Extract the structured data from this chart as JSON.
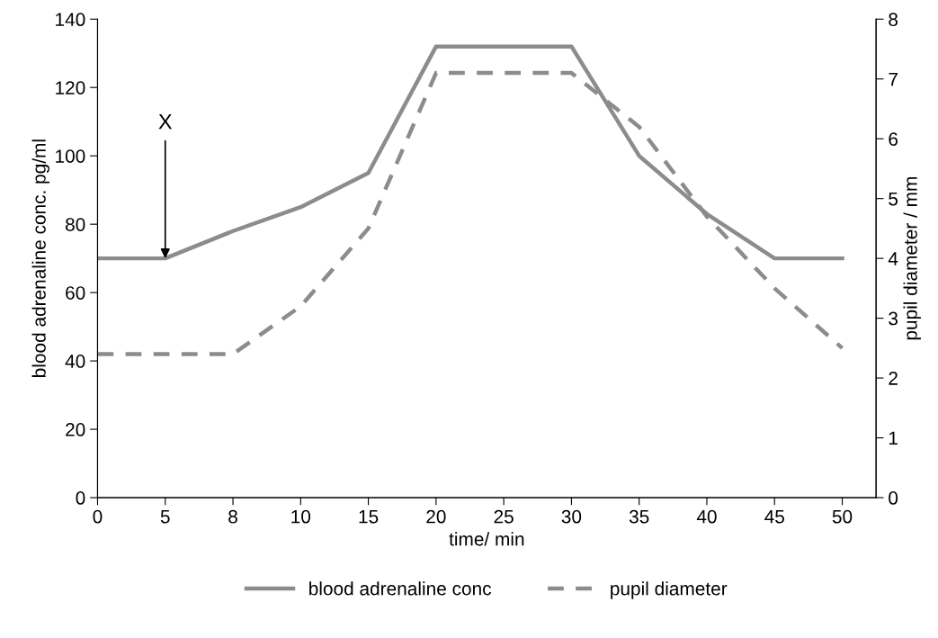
{
  "chart_data": {
    "type": "line",
    "xlabel": "time/ min",
    "ylabel": "blood adrenaline conc. pg/ml",
    "y2label": "pupil diameter / mm",
    "categories": [
      "0",
      "5",
      "8",
      "10",
      "15",
      "20",
      "25",
      "30",
      "35",
      "40",
      "45",
      "50"
    ],
    "series": [
      {
        "name": "blood adrenaline conc",
        "color": "#8c8c8c",
        "line_style": "solid",
        "values": [
          70,
          70,
          78,
          85,
          95,
          132,
          132,
          132,
          100,
          83,
          70,
          70
        ]
      },
      {
        "name": "pupil diameter",
        "color": "#8c8c8c",
        "line_style": "dashed",
        "axis": "y2",
        "values": [
          2.4,
          2.4,
          2.4,
          3.2,
          4.5,
          7.1,
          7.1,
          7.1,
          6.2,
          4.7,
          3.5,
          2.5
        ]
      }
    ],
    "ylim": [
      0,
      140
    ],
    "yticks": [
      0,
      20,
      40,
      60,
      80,
      100,
      120,
      140
    ],
    "y2lim": [
      0,
      8
    ],
    "y2ticks": [
      0,
      1,
      2,
      3,
      4,
      5,
      6,
      7,
      8
    ],
    "annotations": [
      {
        "text": "X",
        "x": "5",
        "y": 70
      }
    ],
    "legend": "bottom",
    "grid": false,
    "marker": "none"
  }
}
